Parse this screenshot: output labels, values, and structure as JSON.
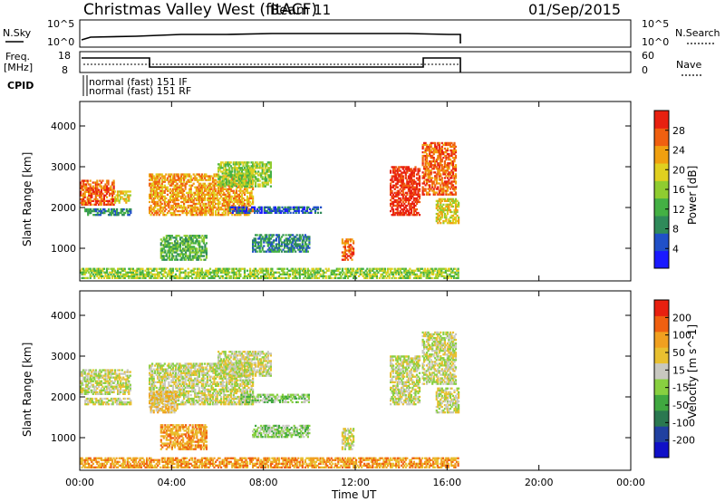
{
  "header": {
    "title": "Christmas Valley West (fitACF)",
    "beam": "Beam 11",
    "date": "01/Sep/2015"
  },
  "panels": {
    "nsky": {
      "label": "N.Sky",
      "tick_top": "10^5",
      "tick_bottom": "10^0"
    },
    "nsearch": {
      "label": "N.Search",
      "tick_top": "10^5",
      "tick_bottom": "10^0"
    },
    "freq": {
      "label_line1": "Freq.",
      "label_line2": "[MHz]",
      "tick_top": "18",
      "tick_bottom": "8"
    },
    "nave": {
      "label": "Nave",
      "tick_top": "60",
      "tick_bottom": "0"
    },
    "cpid": {
      "label": "CPID",
      "line1": "normal (fast) 151 IF",
      "line2": "normal (fast) 151 RF"
    }
  },
  "colors": {
    "power_scale": [
      "#1a1aff",
      "#2050c8",
      "#2f8a5a",
      "#44b044",
      "#8fcc30",
      "#e0d020",
      "#f0a010",
      "#f06010",
      "#e82010"
    ],
    "velocity_scale": [
      "#1010c8",
      "#2040a0",
      "#2a7850",
      "#40a840",
      "#88d040",
      "#c8c8c0",
      "#e8c030",
      "#f0a020",
      "#f06010",
      "#e82010"
    ]
  },
  "chart_data": [
    {
      "type": "heatmap",
      "name": "power",
      "ylabel": "Slant Range [km]",
      "xlabel": "Time UT",
      "x_ticks": [
        "00:00",
        "04:00",
        "08:00",
        "12:00",
        "16:00",
        "20:00",
        "00:00"
      ],
      "y_ticks": [
        1000,
        2000,
        3000,
        4000
      ],
      "ylim": [
        200,
        4600
      ],
      "xlim_hours": [
        0,
        24
      ],
      "colorbar_label": "Power [dB]",
      "colorbar_ticks": [
        "28",
        "24",
        "20",
        "16",
        "12",
        "8",
        "4"
      ],
      "regions": [
        {
          "t0": 0.0,
          "t1": 1.5,
          "r0": 2050,
          "r1": 2650,
          "level": 7
        },
        {
          "t0": 1.5,
          "t1": 2.2,
          "r0": 2100,
          "r1": 2400,
          "level": 5
        },
        {
          "t0": 0.2,
          "t1": 2.2,
          "r0": 1800,
          "r1": 1950,
          "level": 2
        },
        {
          "t0": 3.0,
          "t1": 7.5,
          "r0": 1800,
          "r1": 2800,
          "level": 6
        },
        {
          "t0": 6.0,
          "t1": 8.3,
          "r0": 2500,
          "r1": 3100,
          "level": 4
        },
        {
          "t0": 3.5,
          "t1": 5.5,
          "r0": 700,
          "r1": 1300,
          "level": 3
        },
        {
          "t0": 7.5,
          "t1": 10.0,
          "r0": 900,
          "r1": 1350,
          "level": 2
        },
        {
          "t0": 6.5,
          "t1": 10.5,
          "r0": 1850,
          "r1": 2000,
          "level": 1
        },
        {
          "t0": 11.4,
          "t1": 11.9,
          "r0": 700,
          "r1": 1200,
          "level": 7
        },
        {
          "t0": 13.5,
          "t1": 14.8,
          "r0": 1800,
          "r1": 3000,
          "level": 8
        },
        {
          "t0": 14.9,
          "t1": 16.4,
          "r0": 2300,
          "r1": 3600,
          "level": 7
        },
        {
          "t0": 15.5,
          "t1": 16.5,
          "r0": 1600,
          "r1": 2200,
          "level": 5
        },
        {
          "t0": 0.0,
          "t1": 16.5,
          "r0": 250,
          "r1": 500,
          "level": 4
        }
      ]
    },
    {
      "type": "heatmap",
      "name": "velocity",
      "ylabel": "Slant Range [km]",
      "xlabel": "Time UT",
      "x_ticks": [
        "00:00",
        "04:00",
        "08:00",
        "12:00",
        "16:00",
        "20:00",
        "00:00"
      ],
      "y_ticks": [
        1000,
        2000,
        3000,
        4000
      ],
      "ylim": [
        200,
        4600
      ],
      "xlim_hours": [
        0,
        24
      ],
      "colorbar_label": "Velocity [m s^-1]",
      "colorbar_ticks": [
        "200",
        "100",
        "50",
        "15",
        "-15",
        "-50",
        "-100",
        "-200"
      ],
      "regions": [
        {
          "t0": 0.0,
          "t1": 2.2,
          "r0": 2050,
          "r1": 2650,
          "level": 5
        },
        {
          "t0": 0.2,
          "t1": 2.2,
          "r0": 1800,
          "r1": 1950,
          "level": 5
        },
        {
          "t0": 3.0,
          "t1": 7.5,
          "r0": 1800,
          "r1": 2800,
          "level": 5
        },
        {
          "t0": 3.0,
          "t1": 4.2,
          "r0": 1600,
          "r1": 2100,
          "level": 6
        },
        {
          "t0": 6.0,
          "t1": 8.3,
          "r0": 2500,
          "r1": 3100,
          "level": 5
        },
        {
          "t0": 3.5,
          "t1": 5.5,
          "r0": 700,
          "r1": 1300,
          "level": 7
        },
        {
          "t0": 7.5,
          "t1": 10.0,
          "r0": 1000,
          "r1": 1300,
          "level": 4
        },
        {
          "t0": 7.0,
          "t1": 10.0,
          "r0": 1850,
          "r1": 2050,
          "level": 4
        },
        {
          "t0": 11.4,
          "t1": 11.9,
          "r0": 700,
          "r1": 1200,
          "level": 5
        },
        {
          "t0": 13.5,
          "t1": 14.8,
          "r0": 1800,
          "r1": 3000,
          "level": 5
        },
        {
          "t0": 14.9,
          "t1": 16.4,
          "r0": 2300,
          "r1": 3600,
          "level": 5
        },
        {
          "t0": 15.5,
          "t1": 16.5,
          "r0": 1600,
          "r1": 2200,
          "level": 5
        },
        {
          "t0": 0.0,
          "t1": 16.5,
          "r0": 250,
          "r1": 500,
          "level": 7
        }
      ]
    }
  ]
}
